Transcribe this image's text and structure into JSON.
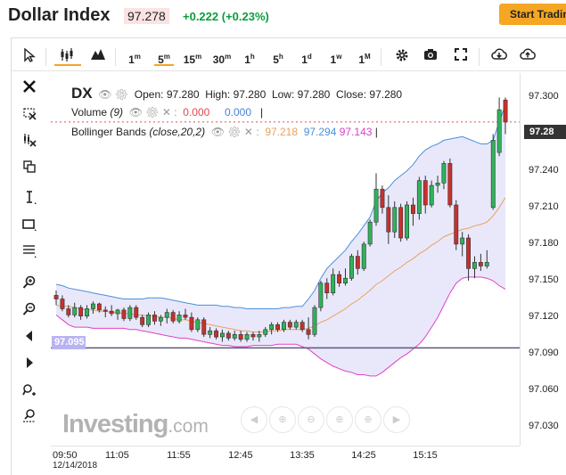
{
  "header": {
    "title": "Dollar Index",
    "price": "97.278",
    "change": "+0.222 (+0.23%)",
    "cta_label": "Start Trading"
  },
  "toolbar": {
    "intervals": [
      {
        "num": "1",
        "unit": "m"
      },
      {
        "num": "5",
        "unit": "m"
      },
      {
        "num": "15",
        "unit": "m"
      },
      {
        "num": "30",
        "unit": "m"
      },
      {
        "num": "1",
        "unit": "h"
      },
      {
        "num": "5",
        "unit": "h"
      },
      {
        "num": "1",
        "unit": "d"
      },
      {
        "num": "1",
        "unit": "w"
      },
      {
        "num": "1",
        "unit": "M"
      }
    ],
    "active_interval": "5m"
  },
  "legend": {
    "symbol": "DX",
    "open_label": "Open:",
    "open": "97.280",
    "high_label": "High:",
    "high": "97.280",
    "low_label": "Low:",
    "low": "97.280",
    "close_label": "Close:",
    "close": "97.280",
    "volume_label": "Volume",
    "volume_params": "(9)",
    "volume_v1": "0.000",
    "volume_v2": "0.000",
    "bb_label": "Bollinger Bands",
    "bb_params": "(close,20,2)",
    "bb_v1": "97.218",
    "bb_v2": "97.294",
    "bb_v3": "97.143"
  },
  "current_price_tag": "97.28",
  "bb_lower_tag": "97.095",
  "watermark": {
    "brand": "Investing",
    "suffix": ".com"
  },
  "colors": {
    "up": "#2eb35a",
    "down": "#c9302c",
    "bb_upper": "#4a90d9",
    "bb_mid": "#e8a25d",
    "bb_lower": "#e040c8",
    "bb_fill": "#e9e8fb",
    "hline": "#5a5a7a",
    "accent": "#f5a623"
  },
  "chart_data": {
    "type": "candlestick",
    "symbol": "DX",
    "ylim": [
      97.015,
      97.32
    ],
    "y_ticks": [
      97.3,
      97.27,
      97.24,
      97.21,
      97.18,
      97.15,
      97.12,
      97.09,
      97.06,
      97.03
    ],
    "y_tick_labels": [
      "97.300",
      "97.270",
      "97.240",
      "97.210",
      "97.180",
      "97.150",
      "97.120",
      "97.090",
      "97.060",
      "97.030"
    ],
    "x_ticks": [
      "09:50",
      "11:05",
      "11:55",
      "12:45",
      "13:35",
      "14:25",
      "15:15"
    ],
    "x_date_label": "12/14/2018",
    "horizontal_line": 97.095,
    "last_price": 97.28,
    "candles": [
      {
        "o": 97.138,
        "h": 97.142,
        "l": 97.13,
        "c": 97.135
      },
      {
        "o": 97.135,
        "h": 97.138,
        "l": 97.125,
        "c": 97.127
      },
      {
        "o": 97.127,
        "h": 97.13,
        "l": 97.12,
        "c": 97.122
      },
      {
        "o": 97.122,
        "h": 97.132,
        "l": 97.12,
        "c": 97.128
      },
      {
        "o": 97.128,
        "h": 97.13,
        "l": 97.118,
        "c": 97.121
      },
      {
        "o": 97.121,
        "h": 97.13,
        "l": 97.119,
        "c": 97.127
      },
      {
        "o": 97.127,
        "h": 97.133,
        "l": 97.123,
        "c": 97.131
      },
      {
        "o": 97.131,
        "h": 97.132,
        "l": 97.124,
        "c": 97.126
      },
      {
        "o": 97.126,
        "h": 97.129,
        "l": 97.12,
        "c": 97.125
      },
      {
        "o": 97.125,
        "h": 97.13,
        "l": 97.121,
        "c": 97.123
      },
      {
        "o": 97.123,
        "h": 97.127,
        "l": 97.118,
        "c": 97.126
      },
      {
        "o": 97.126,
        "h": 97.128,
        "l": 97.117,
        "c": 97.119
      },
      {
        "o": 97.119,
        "h": 97.13,
        "l": 97.117,
        "c": 97.128
      },
      {
        "o": 97.128,
        "h": 97.13,
        "l": 97.118,
        "c": 97.12
      },
      {
        "o": 97.12,
        "h": 97.122,
        "l": 97.112,
        "c": 97.114
      },
      {
        "o": 97.114,
        "h": 97.124,
        "l": 97.112,
        "c": 97.122
      },
      {
        "o": 97.122,
        "h": 97.125,
        "l": 97.114,
        "c": 97.117
      },
      {
        "o": 97.117,
        "h": 97.122,
        "l": 97.113,
        "c": 97.12
      },
      {
        "o": 97.12,
        "h": 97.127,
        "l": 97.115,
        "c": 97.124
      },
      {
        "o": 97.124,
        "h": 97.126,
        "l": 97.115,
        "c": 97.117
      },
      {
        "o": 97.117,
        "h": 97.125,
        "l": 97.115,
        "c": 97.122
      },
      {
        "o": 97.122,
        "h": 97.127,
        "l": 97.118,
        "c": 97.12
      },
      {
        "o": 97.12,
        "h": 97.124,
        "l": 97.108,
        "c": 97.11
      },
      {
        "o": 97.11,
        "h": 97.12,
        "l": 97.108,
        "c": 97.118
      },
      {
        "o": 97.118,
        "h": 97.12,
        "l": 97.104,
        "c": 97.106
      },
      {
        "o": 97.106,
        "h": 97.112,
        "l": 97.103,
        "c": 97.109
      },
      {
        "o": 97.109,
        "h": 97.111,
        "l": 97.102,
        "c": 97.104
      },
      {
        "o": 97.104,
        "h": 97.11,
        "l": 97.1,
        "c": 97.107
      },
      {
        "o": 97.107,
        "h": 97.109,
        "l": 97.101,
        "c": 97.103
      },
      {
        "o": 97.103,
        "h": 97.109,
        "l": 97.101,
        "c": 97.106
      },
      {
        "o": 97.106,
        "h": 97.109,
        "l": 97.1,
        "c": 97.102
      },
      {
        "o": 97.102,
        "h": 97.108,
        "l": 97.1,
        "c": 97.106
      },
      {
        "o": 97.106,
        "h": 97.108,
        "l": 97.101,
        "c": 97.104
      },
      {
        "o": 97.104,
        "h": 97.109,
        "l": 97.1,
        "c": 97.106
      },
      {
        "o": 97.106,
        "h": 97.112,
        "l": 97.104,
        "c": 97.11
      },
      {
        "o": 97.11,
        "h": 97.116,
        "l": 97.106,
        "c": 97.114
      },
      {
        "o": 97.114,
        "h": 97.116,
        "l": 97.108,
        "c": 97.11
      },
      {
        "o": 97.11,
        "h": 97.118,
        "l": 97.108,
        "c": 97.116
      },
      {
        "o": 97.116,
        "h": 97.118,
        "l": 97.11,
        "c": 97.112
      },
      {
        "o": 97.112,
        "h": 97.118,
        "l": 97.11,
        "c": 97.116
      },
      {
        "o": 97.116,
        "h": 97.118,
        "l": 97.108,
        "c": 97.11
      },
      {
        "o": 97.11,
        "h": 97.12,
        "l": 97.102,
        "c": 97.106
      },
      {
        "o": 97.106,
        "h": 97.13,
        "l": 97.104,
        "c": 97.128
      },
      {
        "o": 97.128,
        "h": 97.15,
        "l": 97.125,
        "c": 97.148
      },
      {
        "o": 97.148,
        "h": 97.152,
        "l": 97.135,
        "c": 97.14
      },
      {
        "o": 97.14,
        "h": 97.16,
        "l": 97.138,
        "c": 97.155
      },
      {
        "o": 97.155,
        "h": 97.158,
        "l": 97.145,
        "c": 97.148
      },
      {
        "o": 97.148,
        "h": 97.16,
        "l": 97.146,
        "c": 97.152
      },
      {
        "o": 97.152,
        "h": 97.172,
        "l": 97.15,
        "c": 97.17
      },
      {
        "o": 97.17,
        "h": 97.175,
        "l": 97.155,
        "c": 97.16
      },
      {
        "o": 97.16,
        "h": 97.182,
        "l": 97.158,
        "c": 97.18
      },
      {
        "o": 97.18,
        "h": 97.2,
        "l": 97.178,
        "c": 97.198
      },
      {
        "o": 97.198,
        "h": 97.238,
        "l": 97.195,
        "c": 97.225
      },
      {
        "o": 97.225,
        "h": 97.228,
        "l": 97.205,
        "c": 97.21
      },
      {
        "o": 97.21,
        "h": 97.22,
        "l": 97.18,
        "c": 97.19
      },
      {
        "o": 97.19,
        "h": 97.215,
        "l": 97.185,
        "c": 97.21
      },
      {
        "o": 97.21,
        "h": 97.213,
        "l": 97.182,
        "c": 97.185
      },
      {
        "o": 97.185,
        "h": 97.215,
        "l": 97.183,
        "c": 97.212
      },
      {
        "o": 97.212,
        "h": 97.218,
        "l": 97.195,
        "c": 97.205
      },
      {
        "o": 97.205,
        "h": 97.235,
        "l": 97.2,
        "c": 97.232
      },
      {
        "o": 97.232,
        "h": 97.236,
        "l": 97.205,
        "c": 97.212
      },
      {
        "o": 97.212,
        "h": 97.232,
        "l": 97.21,
        "c": 97.228
      },
      {
        "o": 97.228,
        "h": 97.236,
        "l": 97.222,
        "c": 97.23
      },
      {
        "o": 97.23,
        "h": 97.248,
        "l": 97.225,
        "c": 97.246
      },
      {
        "o": 97.246,
        "h": 97.25,
        "l": 97.21,
        "c": 97.212
      },
      {
        "o": 97.212,
        "h": 97.216,
        "l": 97.175,
        "c": 97.18
      },
      {
        "o": 97.18,
        "h": 97.19,
        "l": 97.17,
        "c": 97.185
      },
      {
        "o": 97.185,
        "h": 97.188,
        "l": 97.15,
        "c": 97.16
      },
      {
        "o": 97.16,
        "h": 97.17,
        "l": 97.152,
        "c": 97.165
      },
      {
        "o": 97.165,
        "h": 97.172,
        "l": 97.158,
        "c": 97.162
      },
      {
        "o": 97.162,
        "h": 97.175,
        "l": 97.16,
        "c": 97.165
      },
      {
        "o": 97.21,
        "h": 97.27,
        "l": 97.208,
        "c": 97.265
      },
      {
        "o": 97.255,
        "h": 97.3,
        "l": 97.252,
        "c": 97.29
      },
      {
        "o": 97.298,
        "h": 97.3,
        "l": 97.27,
        "c": 97.28
      }
    ],
    "bollinger": {
      "params": "(close,20,2)",
      "upper": [
        97.147,
        97.146,
        97.144,
        97.143,
        97.142,
        97.141,
        97.14,
        97.139,
        97.138,
        97.137,
        97.136,
        97.135,
        97.135,
        97.135,
        97.135,
        97.136,
        97.136,
        97.136,
        97.135,
        97.134,
        97.133,
        97.132,
        97.131,
        97.13,
        97.13,
        97.13,
        97.13,
        97.129,
        97.129,
        97.128,
        97.128,
        97.127,
        97.127,
        97.127,
        97.127,
        97.127,
        97.127,
        97.128,
        97.128,
        97.129,
        97.129,
        97.135,
        97.142,
        97.152,
        97.16,
        97.165,
        97.17,
        97.175,
        97.182,
        97.188,
        97.195,
        97.202,
        97.215,
        97.222,
        97.226,
        97.232,
        97.236,
        97.24,
        97.245,
        97.252,
        97.257,
        97.26,
        97.262,
        97.265,
        97.266,
        97.267,
        97.268,
        97.266,
        97.264,
        97.262,
        97.262,
        97.265,
        97.28,
        97.294
      ],
      "middle": [
        97.13,
        97.129,
        97.129,
        97.128,
        97.127,
        97.126,
        97.126,
        97.125,
        97.125,
        97.124,
        97.124,
        97.123,
        97.123,
        97.122,
        97.122,
        97.121,
        97.121,
        97.12,
        97.12,
        97.119,
        97.118,
        97.118,
        97.117,
        97.116,
        97.115,
        97.114,
        97.113,
        97.112,
        97.111,
        97.11,
        97.109,
        97.109,
        97.108,
        97.108,
        97.108,
        97.109,
        97.109,
        97.11,
        97.11,
        97.11,
        97.11,
        97.111,
        97.113,
        97.116,
        97.118,
        97.121,
        97.124,
        97.127,
        97.131,
        97.134,
        97.138,
        97.142,
        97.147,
        97.15,
        97.154,
        97.158,
        97.161,
        97.165,
        97.168,
        97.172,
        97.175,
        97.179,
        97.182,
        97.186,
        97.188,
        97.19,
        97.192,
        97.193,
        97.195,
        97.196,
        97.198,
        97.203,
        97.21,
        97.218
      ],
      "lower": [
        97.122,
        97.118,
        97.114,
        97.112,
        97.112,
        97.112,
        97.111,
        97.111,
        97.111,
        97.111,
        97.111,
        97.111,
        97.11,
        97.11,
        97.109,
        97.108,
        97.107,
        97.106,
        97.105,
        97.104,
        97.103,
        97.103,
        97.102,
        97.101,
        97.1,
        97.099,
        97.098,
        97.097,
        97.097,
        97.096,
        97.096,
        97.096,
        97.097,
        97.097,
        97.097,
        97.097,
        97.098,
        97.098,
        97.098,
        97.098,
        97.096,
        97.094,
        97.09,
        97.086,
        97.083,
        97.08,
        97.078,
        97.076,
        97.075,
        97.073,
        97.073,
        97.072,
        97.072,
        97.075,
        97.079,
        97.083,
        97.087,
        97.09,
        97.094,
        97.098,
        97.104,
        97.112,
        97.12,
        97.13,
        97.14,
        97.148,
        97.152,
        97.153,
        97.153,
        97.153,
        97.152,
        97.15,
        97.146,
        97.143
      ]
    }
  }
}
